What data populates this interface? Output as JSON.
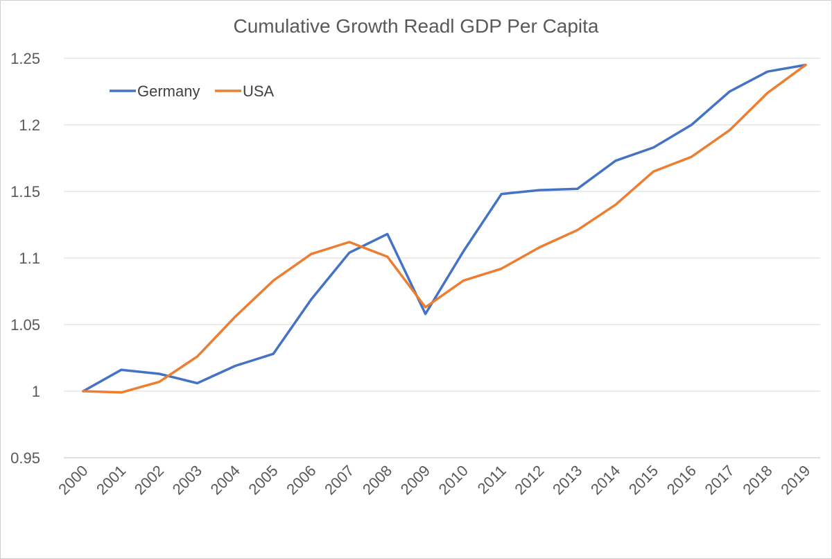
{
  "chart_data": {
    "type": "line",
    "title": "Cumulative Growth Readl GDP Per Capita",
    "xlabel": "",
    "ylabel": "",
    "categories": [
      "2000",
      "2001",
      "2002",
      "2003",
      "2004",
      "2005",
      "2006",
      "2007",
      "2008",
      "2009",
      "2010",
      "2011",
      "2012",
      "2013",
      "2014",
      "2015",
      "2016",
      "2017",
      "2018",
      "2019"
    ],
    "ylim": [
      0.95,
      1.25
    ],
    "yticks": [
      "0.95",
      "1",
      "1.05",
      "1.1",
      "1.15",
      "1.2",
      "1.25"
    ],
    "grid": true,
    "legend_position": "top-left",
    "series": [
      {
        "name": "Germany",
        "color": "#4472c4",
        "values": [
          1.0,
          1.016,
          1.013,
          1.006,
          1.019,
          1.028,
          1.069,
          1.104,
          1.118,
          1.058,
          1.105,
          1.148,
          1.151,
          1.152,
          1.173,
          1.183,
          1.2,
          1.225,
          1.24,
          1.245
        ]
      },
      {
        "name": "USA",
        "color": "#ed7d31",
        "values": [
          1.0,
          0.999,
          1.007,
          1.026,
          1.056,
          1.083,
          1.103,
          1.112,
          1.101,
          1.063,
          1.083,
          1.092,
          1.108,
          1.121,
          1.14,
          1.165,
          1.176,
          1.196,
          1.224,
          1.245
        ]
      }
    ]
  }
}
